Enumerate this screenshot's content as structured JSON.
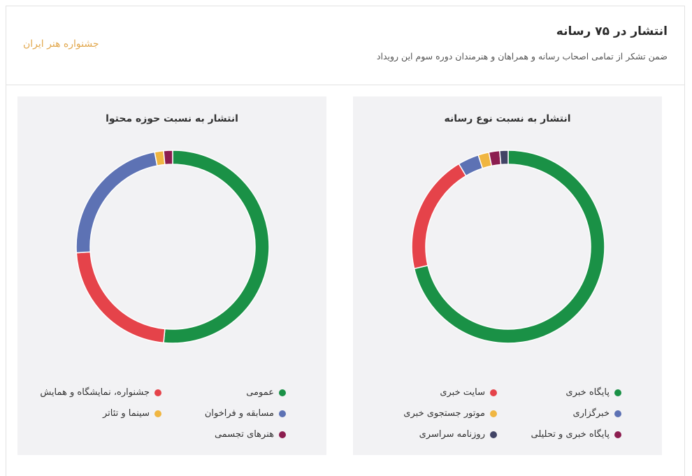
{
  "header": {
    "title": "انتشار در ۷۵ رسانه",
    "subtitle": "ضمن تشکر از تمامی اصحاب رسانه و همراهان و هنرمندان دوره سوم این رویداد",
    "brand": "جشنواره هنر ایران"
  },
  "colors": {
    "green": "#1a9146",
    "red": "#e5434a",
    "blue": "#5d72b4",
    "yellow": "#f0b641",
    "maroon": "#8c1d4f",
    "navy": "#424466"
  },
  "chart_data": [
    {
      "type": "pie",
      "donut": true,
      "title": "انتشار به نسبت نوع رسانه",
      "slices": [
        {
          "label": "پایگاه خبری",
          "value": 71,
          "color": "#1a9146"
        },
        {
          "label": "سایت خبری",
          "value": 20,
          "color": "#e5434a"
        },
        {
          "label": "خبرگزاری",
          "value": 3.5,
          "color": "#5d72b4"
        },
        {
          "label": "موتور جستجوی خبری",
          "value": 1.8,
          "color": "#f0b641"
        },
        {
          "label": "پایگاه خبری و تحلیلی",
          "value": 1.8,
          "color": "#8c1d4f"
        },
        {
          "label": "روزنامه سراسری",
          "value": 1.4,
          "color": "#424466"
        }
      ],
      "legend_position": "bottom"
    },
    {
      "type": "pie",
      "donut": true,
      "title": "انتشار به نسبت حوزه محتوا",
      "slices": [
        {
          "label": "عمومی",
          "value": 51.5,
          "color": "#1a9146"
        },
        {
          "label": "جشنواره، نمایشگاه و همایش",
          "value": 22.5,
          "color": "#e5434a"
        },
        {
          "label": "مسابقه و فراخوان",
          "value": 23,
          "color": "#5d72b4"
        },
        {
          "label": "سینما و تئاتر",
          "value": 1.5,
          "color": "#f0b641"
        },
        {
          "label": "هنرهای تجسمی",
          "value": 1.5,
          "color": "#8c1d4f"
        }
      ],
      "legend_position": "bottom"
    }
  ]
}
